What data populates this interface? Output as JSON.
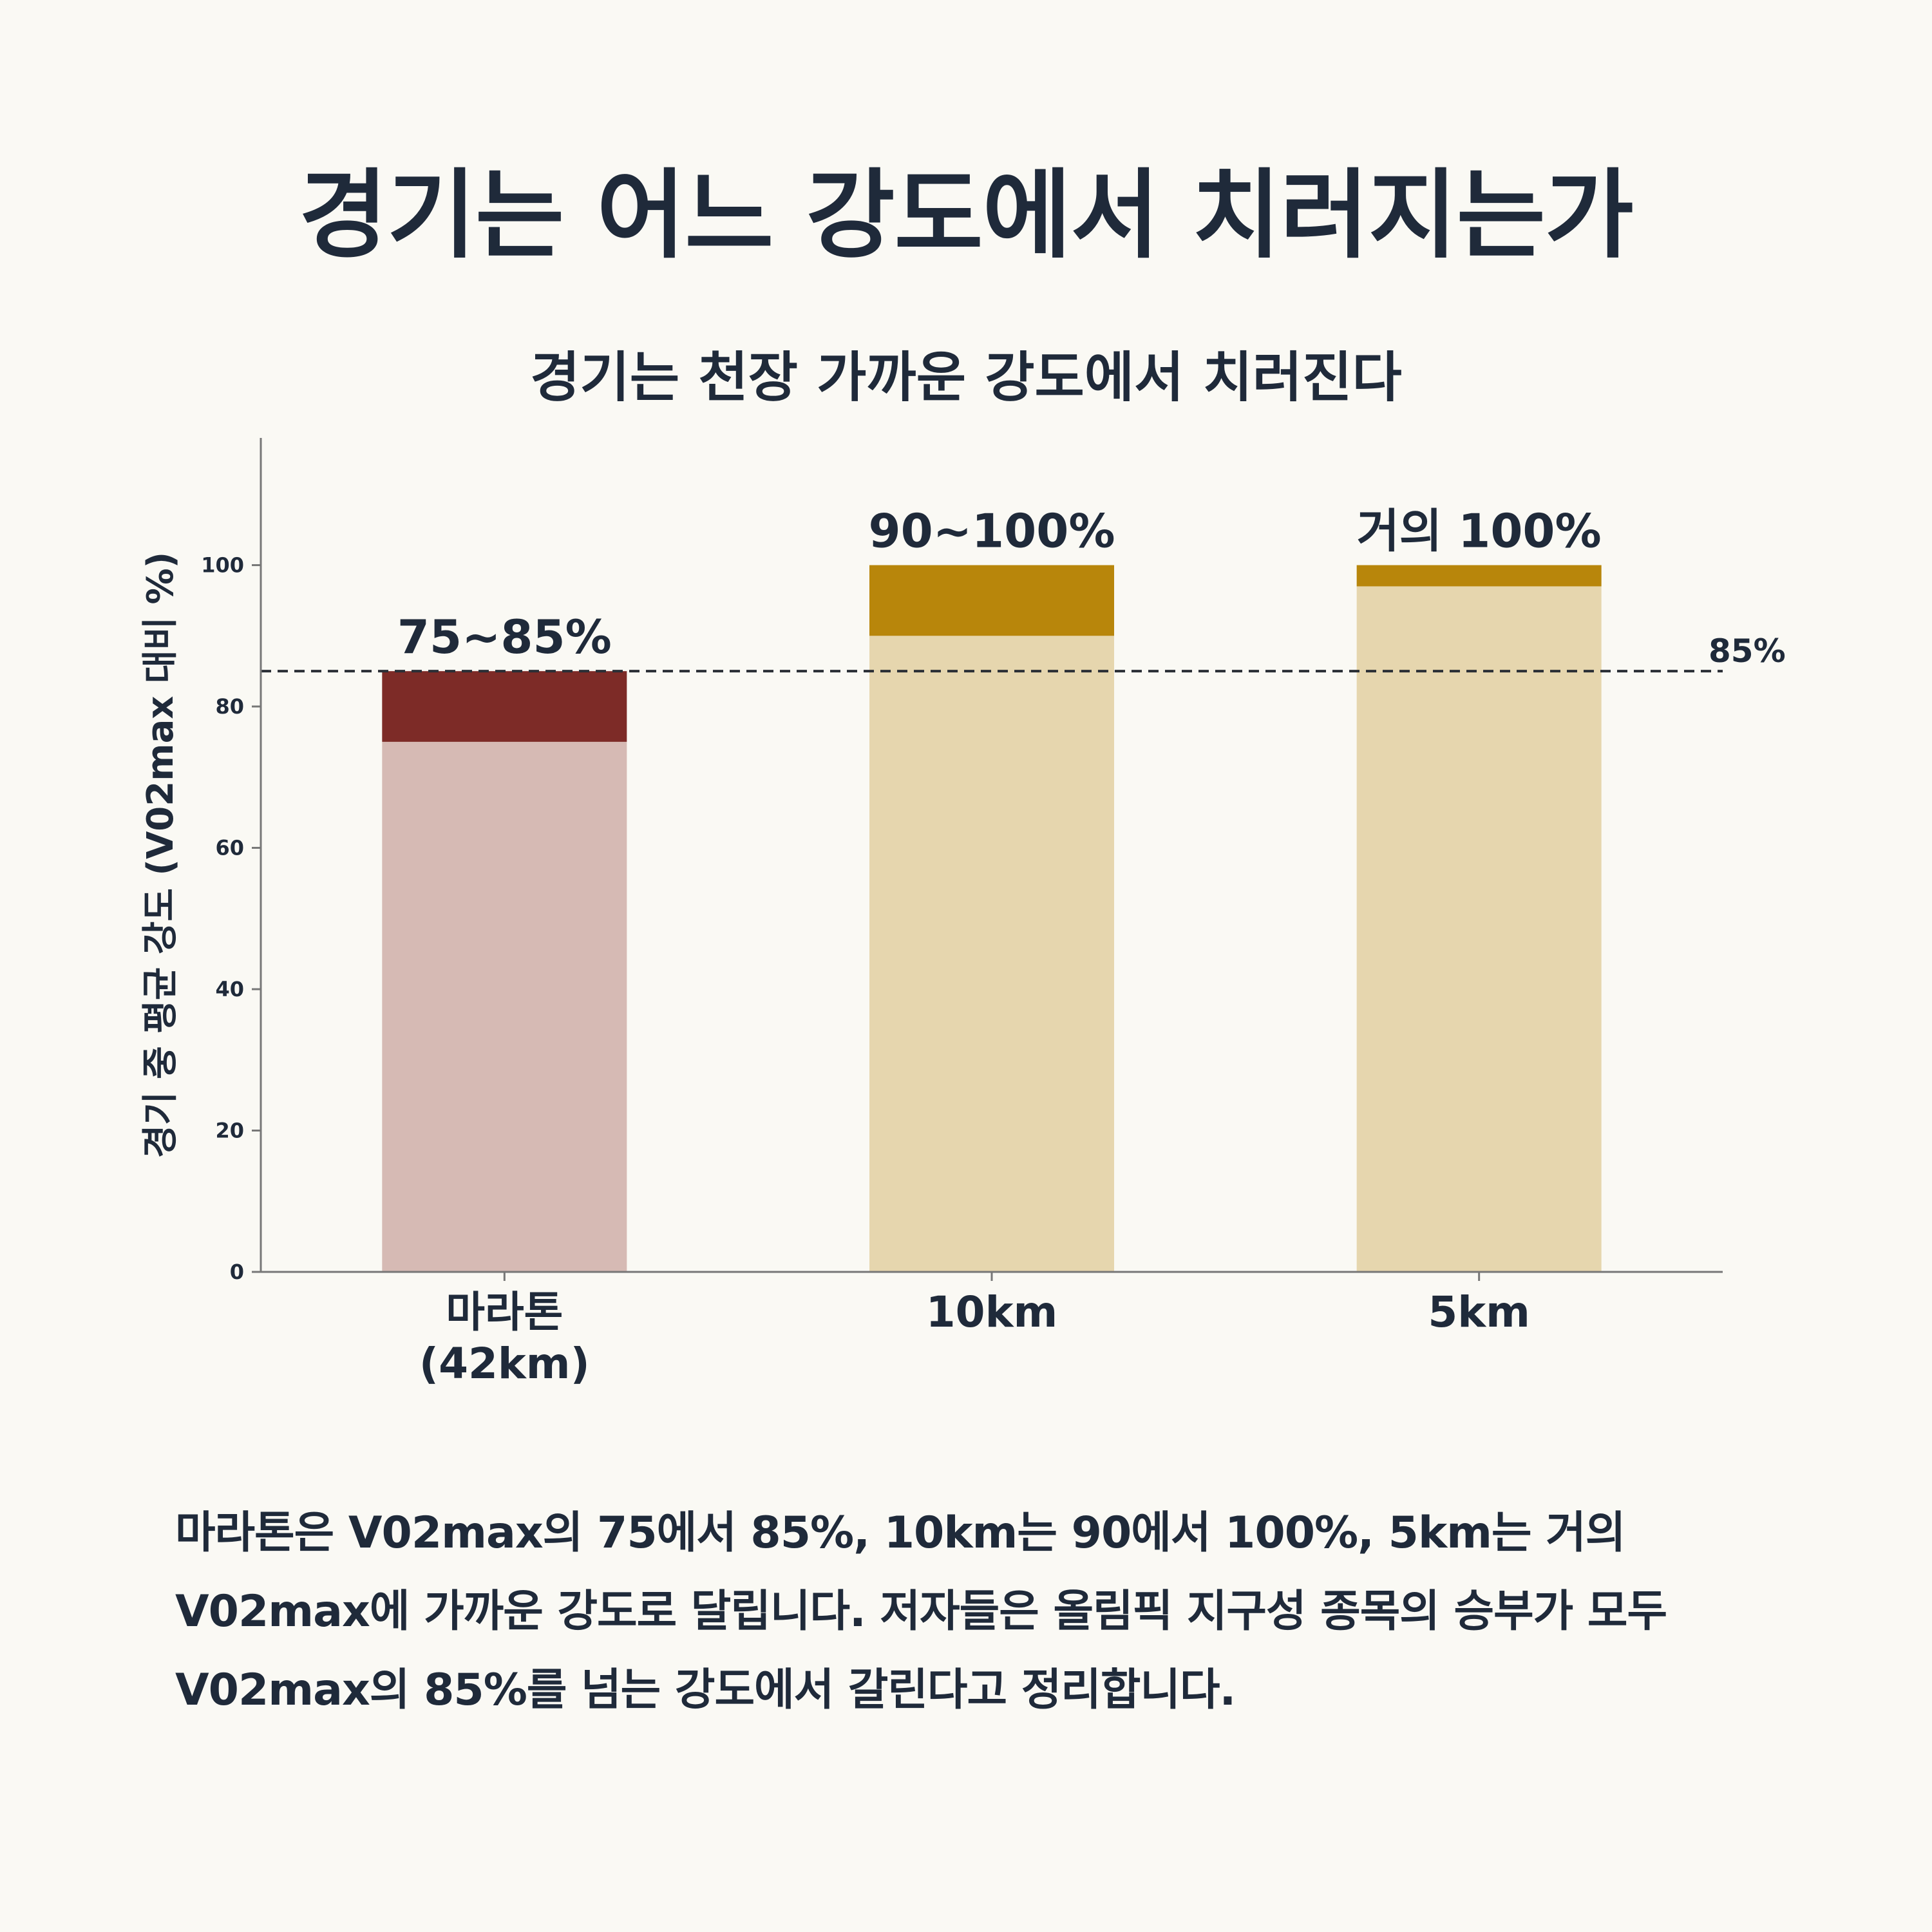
{
  "page": {
    "title": "경기는 어느 강도에서 치러지는가",
    "note": "마라톤은 V02max의 75에서 85%, 10km는 90에서 100%, 5km는 거의 V02max에 가까운 강도로 달립니다. 저자들은 올림픽 지구성 종목의 승부가 모두 V02max의 85%를 넘는 강도에서 갈린다고 정리합니다."
  },
  "chart_data": {
    "type": "bar",
    "stacked": true,
    "title": "경기는 천장 가까운 강도에서 치러진다",
    "xlabel": "",
    "ylabel": "경기 중 평균 강도 (V02max 대비 %)",
    "ylim": [
      0,
      118
    ],
    "yticks": [
      0,
      20,
      40,
      60,
      80,
      100
    ],
    "grid": false,
    "categories": [
      [
        "마라톤",
        "(42km)"
      ],
      [
        "10km"
      ],
      [
        "5km"
      ]
    ],
    "bars": [
      {
        "low": 75,
        "high": 85,
        "label": "75~85%",
        "base_color": "#d6bab4",
        "range_color": "#7d2b27"
      },
      {
        "low": 90,
        "high": 100,
        "label": "90~100%",
        "base_color": "#e6d6ae",
        "range_color": "#b8860b"
      },
      {
        "low": 97,
        "high": 100,
        "label": "거의 100%",
        "base_color": "#e6d6ae",
        "range_color": "#b8860b"
      }
    ],
    "reference_line": {
      "value": 85,
      "label": "85%",
      "style": "dashed",
      "color": "#2b2f36"
    },
    "axis_color": "#777777"
  }
}
